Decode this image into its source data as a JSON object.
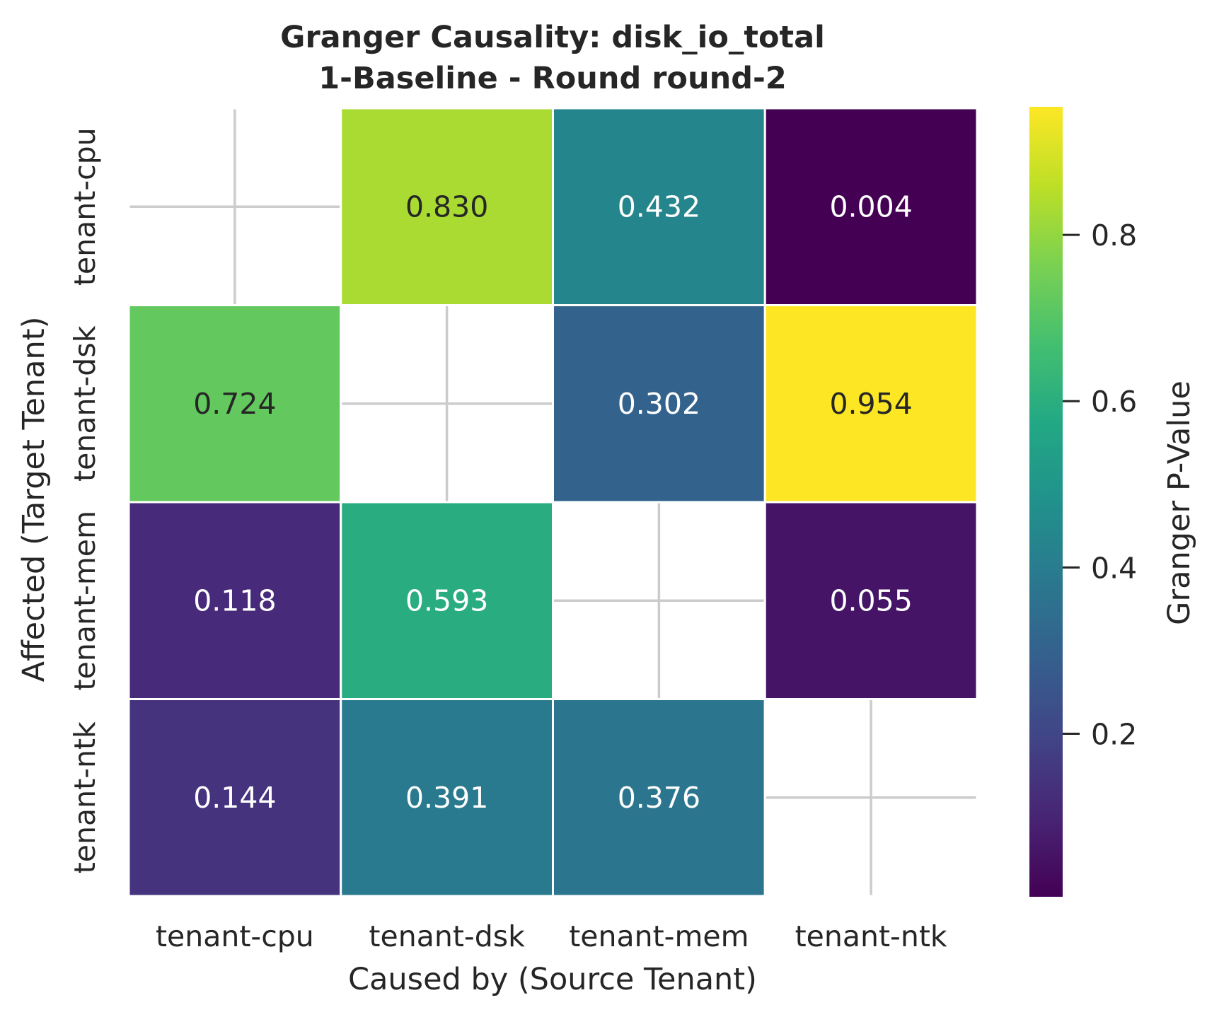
{
  "chart_data": {
    "type": "heatmap",
    "title": "Granger Causality: disk_io_total",
    "subtitle": "1-Baseline - Round round-2",
    "xlabel": "Caused by (Source Tenant)",
    "ylabel": "Affected (Target Tenant)",
    "x_categories": [
      "tenant-cpu",
      "tenant-dsk",
      "tenant-mem",
      "tenant-ntk"
    ],
    "y_categories": [
      "tenant-cpu",
      "tenant-dsk",
      "tenant-mem",
      "tenant-ntk"
    ],
    "values": [
      [
        null,
        0.83,
        0.432,
        0.004
      ],
      [
        0.724,
        null,
        0.302,
        0.954
      ],
      [
        0.118,
        0.593,
        null,
        0.055
      ],
      [
        0.144,
        0.391,
        0.376,
        null
      ]
    ],
    "value_format": "0.000",
    "colormap": "viridis",
    "vmin": 0.004,
    "vmax": 0.954,
    "colorbar": {
      "label": "Granger P-Value",
      "ticks": [
        0.2,
        0.4,
        0.6,
        0.8
      ],
      "tick_labels": [
        "0.2",
        "0.4",
        "0.6",
        "0.8"
      ]
    },
    "missing_cells": "diagonal (blank)",
    "grid": true
  }
}
